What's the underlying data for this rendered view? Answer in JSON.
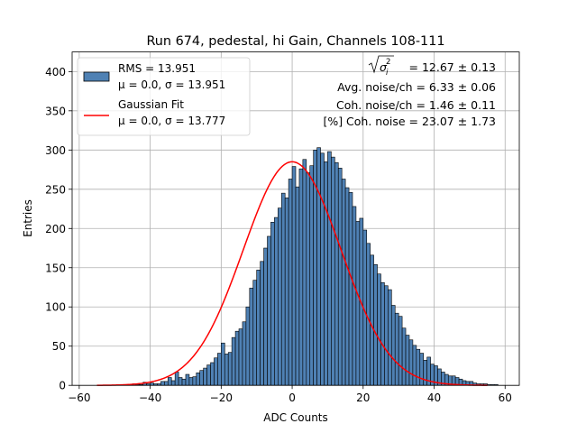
{
  "chart_data": {
    "type": "bar",
    "title": "Run 674, pedestal, hi Gain, Channels 108-111",
    "xlabel": "ADC Counts",
    "ylabel": "Entries",
    "xlim": [
      -62,
      64
    ],
    "ylim": [
      0,
      425
    ],
    "x_ticks": [
      -60,
      -40,
      -20,
      0,
      20,
      40,
      60
    ],
    "y_ticks": [
      0,
      50,
      100,
      150,
      200,
      250,
      300,
      350,
      400
    ],
    "x_tick_labels": [
      "−60",
      "−40",
      "−20",
      "0",
      "20",
      "40",
      "60"
    ],
    "y_tick_labels": [
      "0",
      "50",
      "100",
      "150",
      "200",
      "250",
      "300",
      "350",
      "400"
    ],
    "grid": true,
    "legend_position": "top-left",
    "legend": [
      {
        "kind": "bar",
        "line1": "RMS = 13.951",
        "line2": "μ = 0.0, σ = 13.951",
        "color": "#4f81b4"
      },
      {
        "kind": "line",
        "line1": "Gaussian Fit",
        "line2": "μ = 0.0, σ = 13.777",
        "color": "#ff0000"
      }
    ],
    "annotations": {
      "sigma_label": "= 12.67 ± 0.13",
      "avg_noise": "Avg. noise/ch = 6.33 ± 0.06",
      "coh_noise": "Coh. noise/ch = 1.46 ± 0.11",
      "coh_noise_pct": "[%] Coh. noise = 23.07 ± 1.73"
    },
    "histogram": {
      "bin_start": -55,
      "bin_width": 1,
      "bar_color": "#4f81b4",
      "edge_color": "#000000",
      "counts": [
        0,
        0,
        0,
        0,
        0,
        0,
        1,
        1,
        0,
        1,
        2,
        1,
        1,
        4,
        2,
        3,
        2,
        2,
        5,
        5,
        10,
        6,
        17,
        10,
        8,
        14,
        10,
        11,
        16,
        19,
        22,
        26,
        29,
        35,
        41,
        54,
        40,
        42,
        61,
        69,
        72,
        81,
        100,
        124,
        134,
        147,
        158,
        175,
        190,
        208,
        214,
        226,
        245,
        239,
        263,
        279,
        253,
        276,
        288,
        271,
        280,
        300,
        303,
        296,
        285,
        298,
        291,
        284,
        277,
        263,
        252,
        246,
        228,
        209,
        213,
        198,
        181,
        166,
        154,
        142,
        131,
        127,
        122,
        102,
        92,
        88,
        73,
        64,
        58,
        51,
        46,
        41,
        32,
        36,
        27,
        25,
        21,
        17,
        14,
        12,
        12,
        10,
        8,
        6,
        5,
        5,
        3,
        2,
        2,
        2,
        1,
        1,
        1,
        0,
        0,
        0,
        0,
        0,
        0
      ]
    },
    "fit": {
      "mu": 0.0,
      "sigma": 13.777,
      "amplitude": 285,
      "x_range": [
        -55,
        55
      ],
      "color": "#ff0000"
    }
  }
}
